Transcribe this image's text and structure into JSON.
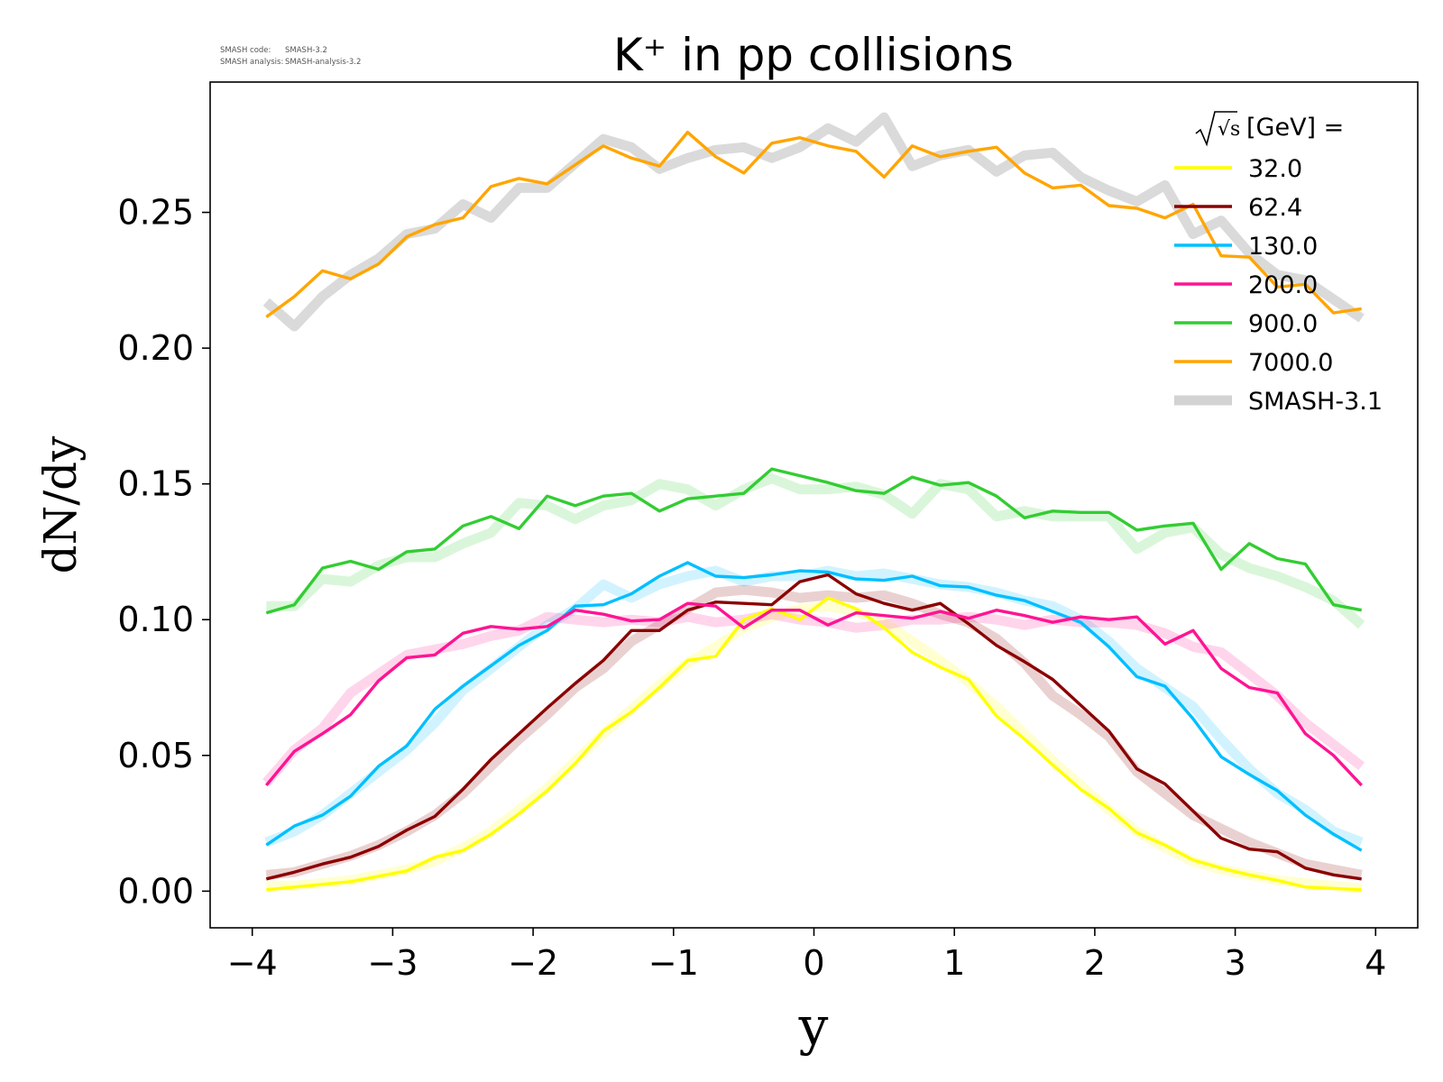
{
  "meta": {
    "code_label": "SMASH code:",
    "code_value": "SMASH-3.2",
    "analysis_label": "SMASH analysis:",
    "analysis_value": "SMASH-analysis-3.2"
  },
  "chart_data": {
    "type": "line",
    "title": "K⁺ in pp collisions",
    "xlabel": "y",
    "ylabel": "dN/dy",
    "xlim": [
      -4.3,
      4.3
    ],
    "ylim": [
      -0.0135,
      0.298
    ],
    "xticks": [
      -4,
      -3,
      -2,
      -1,
      0,
      1,
      2,
      3,
      4
    ],
    "xtick_labels": [
      "−4",
      "−3",
      "−2",
      "−1",
      "0",
      "1",
      "2",
      "3",
      "4"
    ],
    "yticks": [
      0.0,
      0.05,
      0.1,
      0.15,
      0.2,
      0.25
    ],
    "ytick_labels": [
      "0.00",
      "0.05",
      "0.10",
      "0.15",
      "0.20",
      "0.25"
    ],
    "grid": false,
    "legend": {
      "position": "top-right",
      "title_prefix": "√s",
      "title_suffix": " [GeV] ="
    },
    "x": [
      -3.9,
      -3.7,
      -3.5,
      -3.3,
      -3.1,
      -2.9,
      -2.7,
      -2.5,
      -2.3,
      -2.1,
      -1.9,
      -1.7,
      -1.5,
      -1.3,
      -1.1,
      -0.9,
      -0.7,
      -0.5,
      -0.3,
      -0.1,
      0.1,
      0.3,
      0.5,
      0.7,
      0.9,
      1.1,
      1.3,
      1.5,
      1.7,
      1.9,
      2.1,
      2.3,
      2.5,
      2.7,
      2.9,
      3.1,
      3.3,
      3.5,
      3.7,
      3.9
    ],
    "series": [
      {
        "name": "32.0",
        "color": "#ffff00",
        "values": [
          0.0005,
          0.0015,
          0.0025,
          0.0035,
          0.0055,
          0.0075,
          0.0125,
          0.015,
          0.021,
          0.0285,
          0.037,
          0.047,
          0.059,
          0.066,
          0.075,
          0.085,
          0.0865,
          0.1,
          0.104,
          0.1,
          0.108,
          0.104,
          0.097,
          0.088,
          0.0825,
          0.078,
          0.0645,
          0.056,
          0.0465,
          0.0375,
          0.0305,
          0.0215,
          0.017,
          0.0115,
          0.0085,
          0.006,
          0.004,
          0.0015,
          0.001,
          0.0005
        ],
        "ref": [
          0.002,
          0.002,
          0.003,
          0.004,
          0.006,
          0.008,
          0.011,
          0.016,
          0.022,
          0.03,
          0.038,
          0.048,
          0.058,
          0.067,
          0.076,
          0.084,
          0.09,
          0.097,
          0.101,
          0.104,
          0.105,
          0.103,
          0.099,
          0.092,
          0.085,
          0.077,
          0.068,
          0.058,
          0.048,
          0.039,
          0.03,
          0.022,
          0.016,
          0.011,
          0.008,
          0.006,
          0.004,
          0.003,
          0.002,
          0.001
        ]
      },
      {
        "name": "62.4",
        "color": "#8b0000",
        "values": [
          0.0045,
          0.007,
          0.01,
          0.0125,
          0.0165,
          0.0225,
          0.0275,
          0.0375,
          0.0485,
          0.058,
          0.0675,
          0.0765,
          0.085,
          0.096,
          0.096,
          0.1035,
          0.1065,
          0.106,
          0.1055,
          0.114,
          0.1165,
          0.1095,
          0.106,
          0.1035,
          0.106,
          0.0985,
          0.0905,
          0.0845,
          0.078,
          0.0685,
          0.059,
          0.045,
          0.0395,
          0.0295,
          0.0195,
          0.0155,
          0.0145,
          0.0085,
          0.006,
          0.0045
        ],
        "ref": [
          0.006,
          0.007,
          0.01,
          0.013,
          0.017,
          0.022,
          0.028,
          0.036,
          0.046,
          0.056,
          0.065,
          0.075,
          0.082,
          0.092,
          0.098,
          0.104,
          0.11,
          0.111,
          0.11,
          0.108,
          0.109,
          0.108,
          0.109,
          0.106,
          0.102,
          0.099,
          0.093,
          0.084,
          0.072,
          0.065,
          0.057,
          0.044,
          0.036,
          0.028,
          0.023,
          0.018,
          0.014,
          0.01,
          0.008,
          0.006
        ]
      },
      {
        "name": "130.0",
        "color": "#00bfff",
        "values": [
          0.017,
          0.024,
          0.028,
          0.035,
          0.046,
          0.0535,
          0.067,
          0.0755,
          0.083,
          0.0905,
          0.096,
          0.105,
          0.1055,
          0.1095,
          0.116,
          0.121,
          0.116,
          0.1155,
          0.1165,
          0.118,
          0.1175,
          0.115,
          0.1145,
          0.116,
          0.1125,
          0.112,
          0.109,
          0.107,
          0.103,
          0.099,
          0.09,
          0.079,
          0.0755,
          0.0635,
          0.0495,
          0.043,
          0.037,
          0.028,
          0.021,
          0.015
        ],
        "ref": [
          0.018,
          0.022,
          0.028,
          0.036,
          0.044,
          0.052,
          0.062,
          0.074,
          0.082,
          0.09,
          0.098,
          0.104,
          0.113,
          0.108,
          0.113,
          0.116,
          0.118,
          0.114,
          0.116,
          0.116,
          0.118,
          0.116,
          0.117,
          0.115,
          0.113,
          0.112,
          0.11,
          0.107,
          0.105,
          0.1,
          0.092,
          0.082,
          0.075,
          0.068,
          0.056,
          0.045,
          0.036,
          0.03,
          0.022,
          0.018
        ]
      },
      {
        "name": "200.0",
        "color": "#ff1493",
        "values": [
          0.039,
          0.0515,
          0.058,
          0.065,
          0.0775,
          0.086,
          0.087,
          0.095,
          0.0975,
          0.0965,
          0.0975,
          0.1035,
          0.102,
          0.0995,
          0.1,
          0.106,
          0.105,
          0.097,
          0.1035,
          0.1035,
          0.098,
          0.1025,
          0.1015,
          0.1005,
          0.103,
          0.1005,
          0.1035,
          0.1015,
          0.099,
          0.101,
          0.1,
          0.101,
          0.091,
          0.096,
          0.082,
          0.075,
          0.073,
          0.058,
          0.05,
          0.039
        ],
        "ref": [
          0.04,
          0.052,
          0.06,
          0.073,
          0.08,
          0.087,
          0.089,
          0.091,
          0.094,
          0.096,
          0.101,
          0.1,
          0.099,
          0.1,
          0.099,
          0.101,
          0.099,
          0.1,
          0.102,
          0.1,
          0.099,
          0.097,
          0.098,
          0.1,
          0.1,
          0.101,
          0.1,
          0.098,
          0.1,
          0.099,
          0.099,
          0.098,
          0.095,
          0.09,
          0.088,
          0.08,
          0.072,
          0.062,
          0.054,
          0.046
        ]
      },
      {
        "name": "900.0",
        "color": "#32cd32",
        "values": [
          0.1025,
          0.1055,
          0.119,
          0.1215,
          0.1185,
          0.125,
          0.126,
          0.1345,
          0.138,
          0.1335,
          0.1455,
          0.142,
          0.1455,
          0.1465,
          0.14,
          0.1445,
          0.1455,
          0.1465,
          0.1555,
          0.153,
          0.1505,
          0.1475,
          0.1465,
          0.1525,
          0.1495,
          0.1505,
          0.1455,
          0.1375,
          0.14,
          0.1395,
          0.1395,
          0.133,
          0.1345,
          0.1355,
          0.1185,
          0.128,
          0.1225,
          0.1205,
          0.1055,
          0.1035
        ],
        "ref": [
          0.105,
          0.105,
          0.115,
          0.114,
          0.12,
          0.123,
          0.123,
          0.128,
          0.132,
          0.143,
          0.142,
          0.137,
          0.142,
          0.144,
          0.15,
          0.148,
          0.142,
          0.148,
          0.152,
          0.148,
          0.148,
          0.149,
          0.146,
          0.139,
          0.15,
          0.148,
          0.138,
          0.14,
          0.138,
          0.138,
          0.138,
          0.126,
          0.132,
          0.134,
          0.124,
          0.119,
          0.116,
          0.112,
          0.107,
          0.098
        ]
      },
      {
        "name": "7000.0",
        "color": "#ffa500",
        "values": [
          0.2115,
          0.219,
          0.2285,
          0.2255,
          0.231,
          0.241,
          0.2455,
          0.248,
          0.2595,
          0.2625,
          0.2605,
          0.2675,
          0.2745,
          0.27,
          0.267,
          0.2795,
          0.2705,
          0.2645,
          0.2755,
          0.2775,
          0.2745,
          0.2725,
          0.263,
          0.2745,
          0.2705,
          0.2725,
          0.274,
          0.2645,
          0.259,
          0.26,
          0.2525,
          0.2515,
          0.248,
          0.253,
          0.234,
          0.2335,
          0.2225,
          0.2235,
          0.213,
          0.2145
        ],
        "ref": [
          0.217,
          0.208,
          0.219,
          0.227,
          0.233,
          0.242,
          0.244,
          0.253,
          0.248,
          0.259,
          0.259,
          0.268,
          0.277,
          0.274,
          0.266,
          0.27,
          0.273,
          0.274,
          0.27,
          0.274,
          0.281,
          0.276,
          0.285,
          0.267,
          0.271,
          0.273,
          0.265,
          0.271,
          0.272,
          0.263,
          0.258,
          0.254,
          0.26,
          0.242,
          0.247,
          0.235,
          0.227,
          0.225,
          0.218,
          0.211
        ]
      }
    ],
    "reference": {
      "name": "SMASH-3.1",
      "color": "#d3d3d3"
    }
  }
}
